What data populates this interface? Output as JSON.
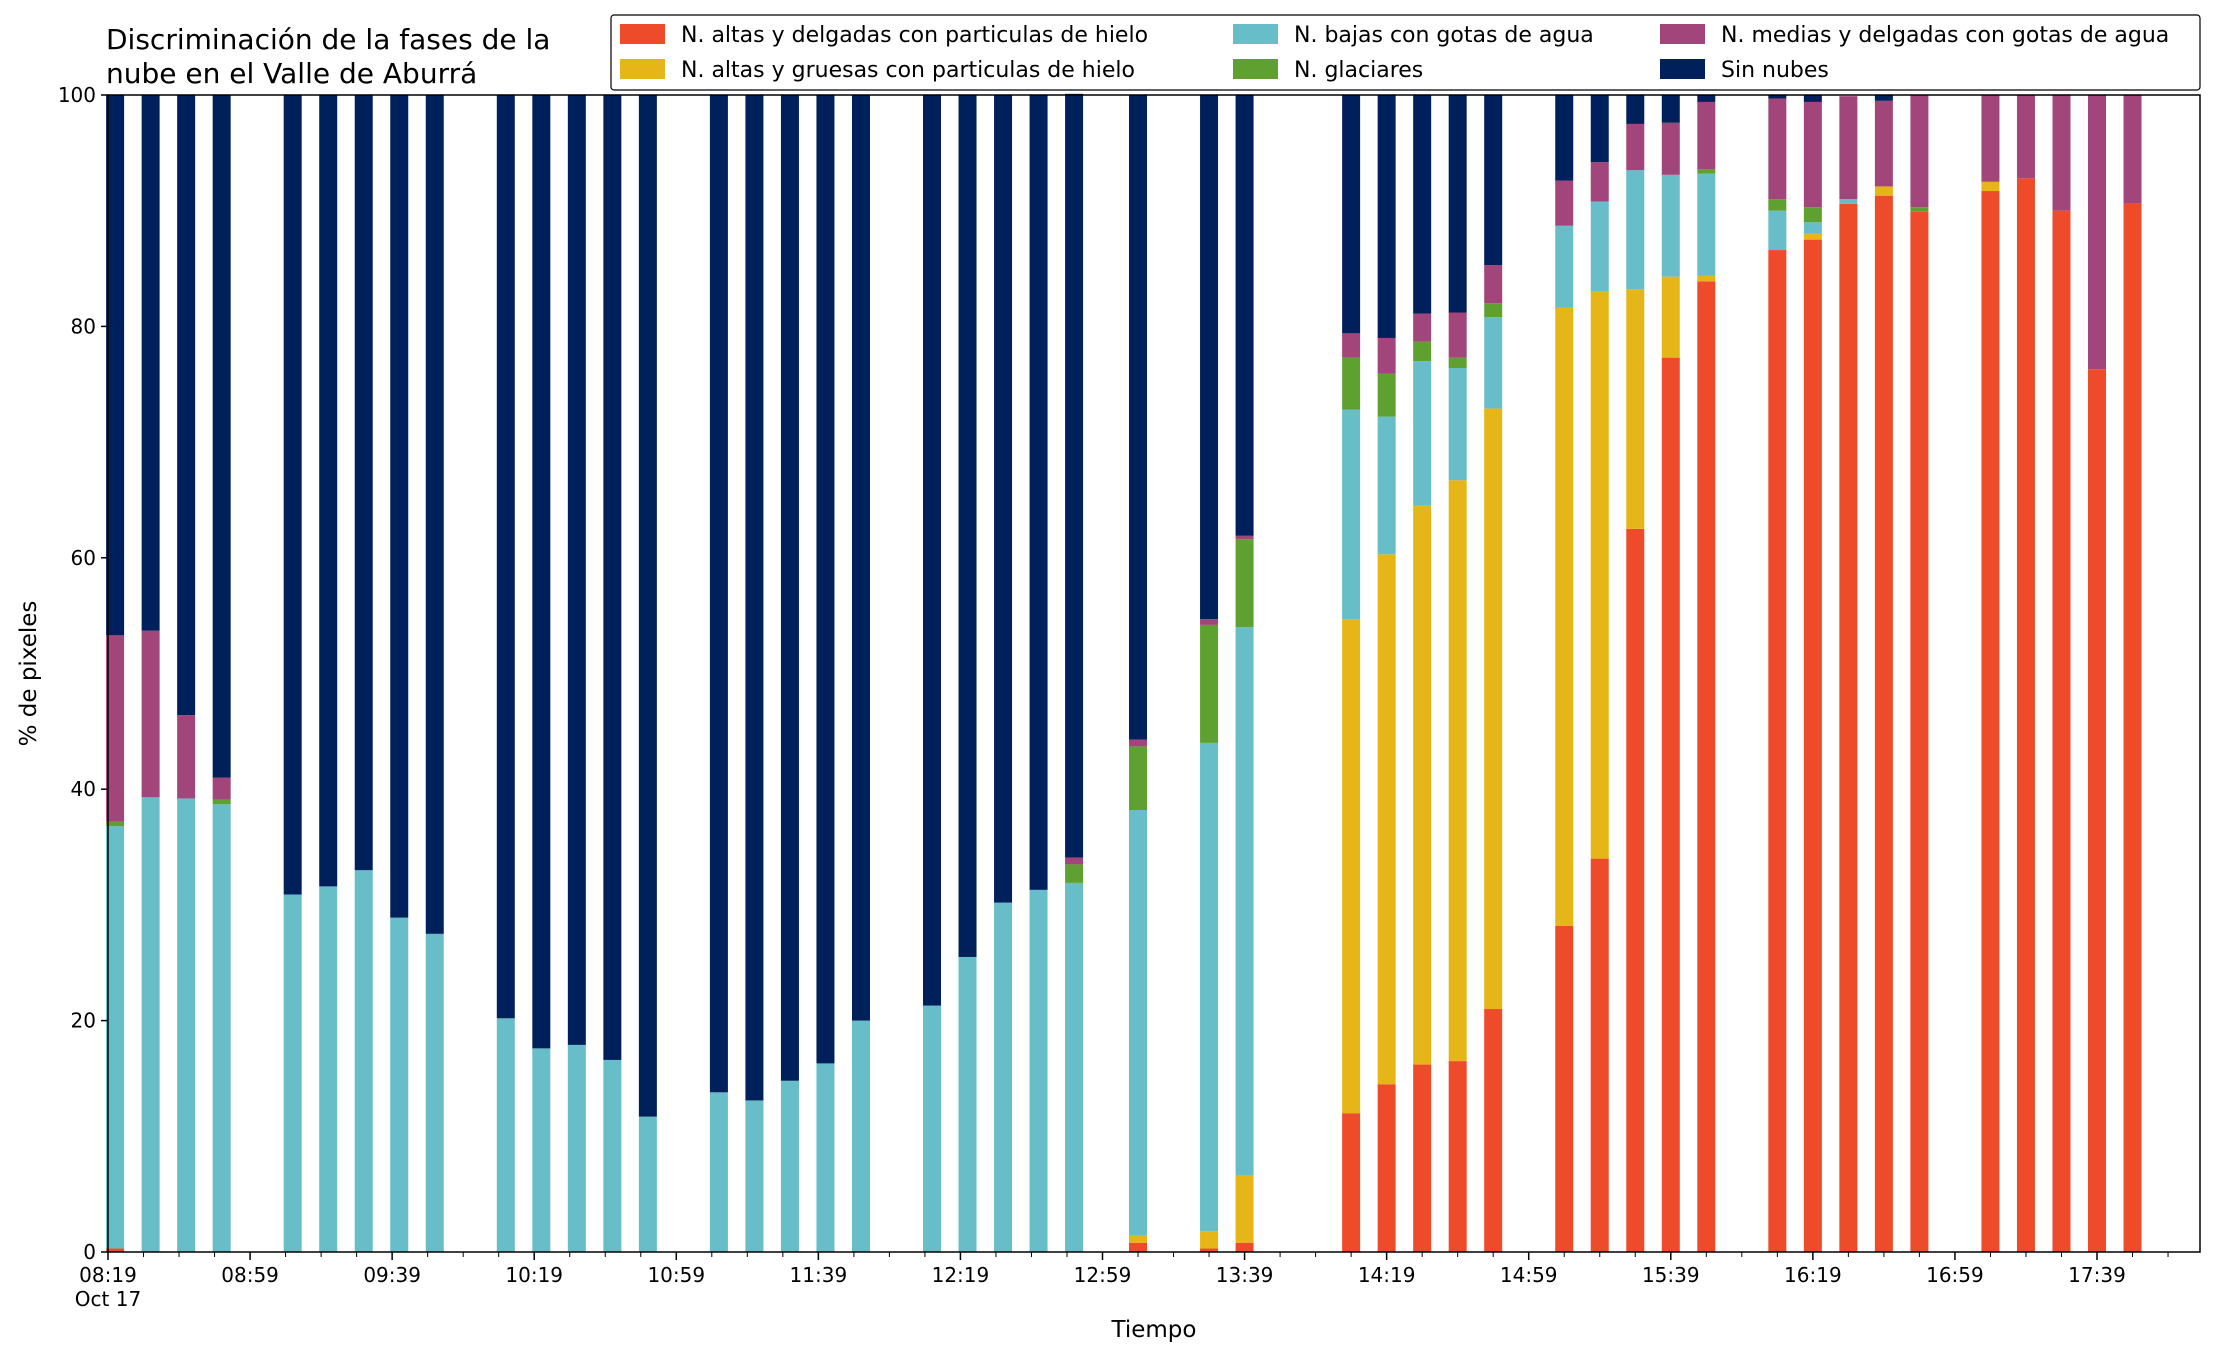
{
  "chart_data": {
    "type": "bar",
    "stacked": true,
    "title_lines": [
      "Discriminación de la fases de la",
      "nube en el Valle de Aburrá"
    ],
    "xlabel": "Tiempo",
    "ylabel": "% de pixeles",
    "ylim": [
      0,
      100
    ],
    "yticks": [
      0,
      20,
      40,
      60,
      80,
      100
    ],
    "xlim_minutes": [
      "08:19",
      "18:08"
    ],
    "xticks": [
      {
        "time": "08:19",
        "label": "08:19",
        "sublabel": "Oct 17"
      },
      {
        "time": "08:59",
        "label": "08:59"
      },
      {
        "time": "09:39",
        "label": "09:39"
      },
      {
        "time": "10:19",
        "label": "10:19"
      },
      {
        "time": "10:59",
        "label": "10:59"
      },
      {
        "time": "11:39",
        "label": "11:39"
      },
      {
        "time": "12:19",
        "label": "12:19"
      },
      {
        "time": "12:59",
        "label": "12:59"
      },
      {
        "time": "13:39",
        "label": "13:39"
      },
      {
        "time": "14:19",
        "label": "14:19"
      },
      {
        "time": "14:59",
        "label": "14:59"
      },
      {
        "time": "15:39",
        "label": "15:39"
      },
      {
        "time": "16:19",
        "label": "16:19"
      },
      {
        "time": "16:59",
        "label": "16:59"
      },
      {
        "time": "17:39",
        "label": "17:39"
      }
    ],
    "legend_position": "top-right",
    "categories": [
      "08:21",
      "08:31",
      "08:41",
      "08:51",
      "09:11",
      "09:21",
      "09:31",
      "09:41",
      "09:51",
      "10:11",
      "10:21",
      "10:31",
      "10:41",
      "10:51",
      "11:11",
      "11:21",
      "11:31",
      "11:41",
      "11:51",
      "12:11",
      "12:21",
      "12:31",
      "12:41",
      "12:51",
      "13:09",
      "13:29",
      "13:39",
      "14:09",
      "14:19",
      "14:29",
      "14:39",
      "14:49",
      "15:09",
      "15:19",
      "15:29",
      "15:39",
      "15:49",
      "16:09",
      "16:19",
      "16:29",
      "16:39",
      "16:49",
      "17:09",
      "17:19",
      "17:29",
      "17:39",
      "17:49"
    ],
    "series": [
      {
        "name": "N. altas y delgadas con particulas de hielo",
        "color": "#ee4b2b",
        "values": [
          0.3,
          0,
          0,
          0,
          0,
          0,
          0,
          0,
          0,
          0,
          0,
          0,
          0,
          0,
          0,
          0,
          0,
          0,
          0,
          0,
          0,
          0,
          0,
          0,
          0.8,
          0.3,
          0.8,
          12,
          14.5,
          16.2,
          16.5,
          21,
          28.2,
          34,
          62.5,
          77.3,
          83.9,
          86.6,
          87.5,
          90.6,
          91.3,
          89.9,
          91.7,
          92.8,
          90,
          76.3,
          90.6
        ]
      },
      {
        "name": "N. altas y gruesas con particulas de hielo",
        "color": "#e6b619",
        "values": [
          0,
          0,
          0,
          0,
          0,
          0,
          0,
          0,
          0,
          0,
          0,
          0,
          0,
          0,
          0,
          0,
          0,
          0,
          0,
          0,
          0,
          0,
          0,
          0,
          0.6,
          1.5,
          5.8,
          42.7,
          45.8,
          48.3,
          50.2,
          51.9,
          53.4,
          49,
          20.7,
          7,
          0.5,
          0,
          0.5,
          0,
          0.8,
          0,
          0.8,
          0,
          0,
          0,
          0
        ]
      },
      {
        "name": "N. bajas con gotas de agua",
        "color": "#67bdc8",
        "values": [
          36.5,
          39.3,
          39.2,
          38.7,
          30.9,
          31.6,
          33.0,
          28.9,
          27.5,
          20.2,
          17.6,
          17.9,
          16.6,
          11.7,
          13.8,
          13.1,
          14.8,
          16.3,
          20.0,
          21.3,
          25.5,
          30.2,
          31.3,
          31.9,
          36.8,
          42.2,
          47.4,
          18.1,
          11.9,
          12.5,
          9.7,
          7.9,
          7.1,
          7.8,
          10.3,
          8.8,
          8.8,
          3.4,
          1,
          0.4,
          0,
          0,
          0,
          0,
          0,
          0,
          0
        ]
      },
      {
        "name": "N. glaciares",
        "color": "#5fa131",
        "values": [
          0.4,
          0,
          0,
          0.4,
          0,
          0,
          0,
          0,
          0,
          0,
          0,
          0,
          0,
          0,
          0,
          0,
          0,
          0,
          0,
          0,
          0,
          0,
          0,
          1.6,
          5.5,
          10.2,
          7.6,
          4.5,
          3.7,
          1.7,
          0.9,
          1.2,
          0,
          0,
          0,
          0,
          0.4,
          1,
          1.3,
          0,
          0,
          0.4,
          0,
          0,
          0,
          0,
          0
        ]
      },
      {
        "name": "N. medias y delgadas con gotas de agua",
        "color": "#a2457a",
        "values": [
          16.1,
          14.4,
          7.2,
          1.9,
          0,
          0,
          0,
          0,
          0,
          0,
          0,
          0,
          0,
          0,
          0,
          0,
          0,
          0,
          0,
          0,
          0,
          0,
          0,
          0.6,
          0.6,
          0.5,
          0.3,
          2.1,
          3.1,
          2.4,
          3.9,
          3.3,
          3.9,
          3.4,
          4,
          4.5,
          5.8,
          8.7,
          9.1,
          8.9,
          7.4,
          9.7,
          7.5,
          7.2,
          10,
          23.7,
          9.4
        ]
      },
      {
        "name": "Sin nubes",
        "color": "#00205b",
        "values": [
          46.7,
          46.3,
          53.6,
          59,
          69.1,
          68.4,
          67,
          71.1,
          72.5,
          79.8,
          82.4,
          82.1,
          83.4,
          88.3,
          86.2,
          86.9,
          85.2,
          83.7,
          80,
          78.7,
          74.5,
          69.8,
          68.7,
          66,
          55.7,
          45.3,
          38.1,
          20.6,
          21,
          18.9,
          18.8,
          14.7,
          7.4,
          5.8,
          2.5,
          2.4,
          0.6,
          0.3,
          0.6,
          0,
          0.5,
          0,
          0,
          0,
          0,
          0,
          0
        ]
      }
    ]
  }
}
